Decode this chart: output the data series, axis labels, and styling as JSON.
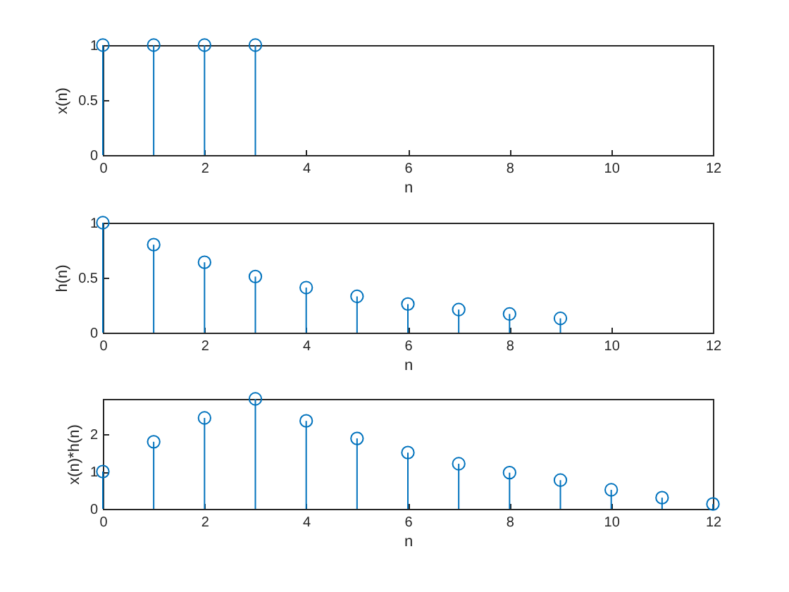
{
  "chart_data": [
    {
      "type": "lollipop",
      "x": [
        0,
        1,
        2,
        3
      ],
      "values": [
        1,
        1,
        1,
        1
      ],
      "color": "#0072bd",
      "marker": "circle",
      "xlim": [
        0,
        12
      ],
      "xticks": [
        0,
        2,
        4,
        6,
        8,
        10,
        12
      ],
      "ylim": [
        0,
        1
      ],
      "yticks": [
        0,
        0.5,
        1
      ],
      "xlabel": "n",
      "ylabel": "x(n)"
    },
    {
      "type": "lollipop",
      "x": [
        0,
        1,
        2,
        3,
        4,
        5,
        6,
        7,
        8,
        9
      ],
      "values": [
        1,
        0.8,
        0.64,
        0.51,
        0.41,
        0.33,
        0.26,
        0.21,
        0.17,
        0.13
      ],
      "color": "#0072bd",
      "marker": "circle",
      "xlim": [
        0,
        12
      ],
      "xticks": [
        0,
        2,
        4,
        6,
        8,
        10,
        12
      ],
      "ylim": [
        0,
        1
      ],
      "yticks": [
        0,
        0.5,
        1
      ],
      "xlabel": "n",
      "ylabel": "h(n)"
    },
    {
      "type": "lollipop",
      "x": [
        0,
        1,
        2,
        3,
        4,
        5,
        6,
        7,
        8,
        9,
        10,
        11,
        12
      ],
      "values": [
        1,
        1.8,
        2.44,
        2.95,
        2.36,
        1.89,
        1.51,
        1.21,
        0.97,
        0.77,
        0.51,
        0.3,
        0.13
      ],
      "color": "#0072bd",
      "marker": "circle",
      "xlim": [
        0,
        12
      ],
      "xticks": [
        0,
        2,
        4,
        6,
        8,
        10,
        12
      ],
      "ylim": [
        0,
        2.95
      ],
      "yticks": [
        0,
        1,
        2
      ],
      "xlabel": "n",
      "ylabel": "x(n)*h(n)"
    }
  ]
}
